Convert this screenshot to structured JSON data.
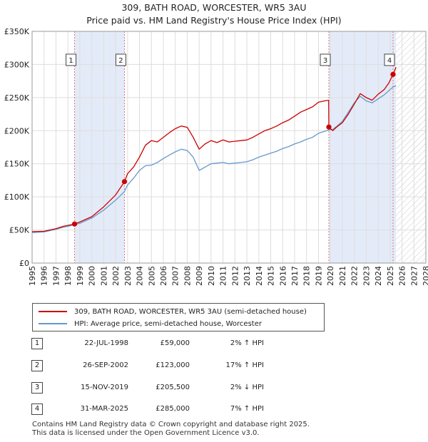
{
  "title_line1": "309, BATH ROAD, WORCESTER, WR5 3AU",
  "title_line2": "Price paid vs. HM Land Registry's House Price Index (HPI)",
  "chart_data": {
    "type": "line",
    "xlim": [
      1995,
      2028
    ],
    "ylim": [
      0,
      350000
    ],
    "yticks": [
      0,
      50000,
      100000,
      150000,
      200000,
      250000,
      300000,
      350000
    ],
    "ytick_labels": [
      "£0",
      "£50K",
      "£100K",
      "£150K",
      "£200K",
      "£250K",
      "£300K",
      "£350K"
    ],
    "xticks": [
      "1995",
      "1996",
      "1997",
      "1998",
      "1999",
      "2000",
      "2001",
      "2002",
      "2003",
      "2004",
      "2005",
      "2006",
      "2007",
      "2008",
      "2009",
      "2010",
      "2011",
      "2012",
      "2013",
      "2014",
      "2015",
      "2016",
      "2017",
      "2018",
      "2019",
      "2020",
      "2021",
      "2022",
      "2023",
      "2024",
      "2025",
      "2026",
      "2027",
      "2028"
    ],
    "future_start": 2025.5,
    "colors": {
      "property": "#cc0000",
      "hpi": "#6699cc",
      "shade": "#e4ebf8",
      "marker_line": "#e07070"
    },
    "series": [
      {
        "name": "property",
        "points": [
          [
            1995,
            47500
          ],
          [
            1996,
            48000
          ],
          [
            1997,
            52000
          ],
          [
            1997.6,
            55500
          ],
          [
            1998.0,
            57000
          ],
          [
            1998.56,
            59000
          ],
          [
            1999,
            62000
          ],
          [
            2000,
            70000
          ],
          [
            2001,
            85000
          ],
          [
            2002,
            103000
          ],
          [
            2002.74,
            123000
          ],
          [
            2003,
            135000
          ],
          [
            2003.5,
            145000
          ],
          [
            2004,
            160000
          ],
          [
            2004.5,
            178000
          ],
          [
            2005,
            185000
          ],
          [
            2005.5,
            183000
          ],
          [
            2006,
            190000
          ],
          [
            2006.5,
            197000
          ],
          [
            2007,
            203000
          ],
          [
            2007.5,
            207000
          ],
          [
            2008,
            205000
          ],
          [
            2008.5,
            190000
          ],
          [
            2009,
            172000
          ],
          [
            2009.5,
            180000
          ],
          [
            2010,
            185000
          ],
          [
            2010.5,
            182000
          ],
          [
            2011,
            186000
          ],
          [
            2011.5,
            183000
          ],
          [
            2012,
            184000
          ],
          [
            2012.5,
            185000
          ],
          [
            2013,
            186000
          ],
          [
            2013.5,
            190000
          ],
          [
            2014,
            195000
          ],
          [
            2014.5,
            200000
          ],
          [
            2015,
            203000
          ],
          [
            2015.5,
            207000
          ],
          [
            2016,
            212000
          ],
          [
            2016.5,
            216000
          ],
          [
            2017,
            222000
          ],
          [
            2017.5,
            228000
          ],
          [
            2018,
            232000
          ],
          [
            2018.5,
            236000
          ],
          [
            2019,
            243000
          ],
          [
            2019.5,
            245000
          ],
          [
            2019.85,
            246000
          ],
          [
            2019.87,
            205500
          ],
          [
            2020.2,
            200000
          ],
          [
            2020.5,
            205000
          ],
          [
            2021,
            212000
          ],
          [
            2021.5,
            225000
          ],
          [
            2022,
            240000
          ],
          [
            2022.5,
            256000
          ],
          [
            2023,
            250000
          ],
          [
            2023.5,
            246000
          ],
          [
            2024,
            255000
          ],
          [
            2024.5,
            262000
          ],
          [
            2024.9,
            272000
          ],
          [
            2025.25,
            285000
          ],
          [
            2025.5,
            296000
          ]
        ]
      },
      {
        "name": "hpi",
        "points": [
          [
            1995,
            46000
          ],
          [
            1996,
            47000
          ],
          [
            1997,
            51000
          ],
          [
            1997.6,
            54000
          ],
          [
            1998,
            55500
          ],
          [
            1998.56,
            57800
          ],
          [
            1999,
            60000
          ],
          [
            2000,
            68000
          ],
          [
            2001,
            80000
          ],
          [
            2002,
            95000
          ],
          [
            2002.74,
            108000
          ],
          [
            2003,
            118000
          ],
          [
            2003.5,
            128000
          ],
          [
            2004,
            140000
          ],
          [
            2004.5,
            147000
          ],
          [
            2005,
            148000
          ],
          [
            2005.5,
            152000
          ],
          [
            2006,
            158000
          ],
          [
            2006.5,
            163000
          ],
          [
            2007,
            168000
          ],
          [
            2007.5,
            172000
          ],
          [
            2008,
            170000
          ],
          [
            2008.5,
            160000
          ],
          [
            2009,
            140000
          ],
          [
            2009.5,
            145000
          ],
          [
            2010,
            150000
          ],
          [
            2010.5,
            151000
          ],
          [
            2011,
            152000
          ],
          [
            2011.5,
            150000
          ],
          [
            2012,
            151000
          ],
          [
            2012.5,
            152000
          ],
          [
            2013,
            153000
          ],
          [
            2013.5,
            156000
          ],
          [
            2014,
            160000
          ],
          [
            2014.5,
            163000
          ],
          [
            2015,
            166000
          ],
          [
            2015.5,
            169000
          ],
          [
            2016,
            173000
          ],
          [
            2016.5,
            176000
          ],
          [
            2017,
            180000
          ],
          [
            2017.5,
            183000
          ],
          [
            2018,
            187000
          ],
          [
            2018.5,
            190000
          ],
          [
            2019,
            196000
          ],
          [
            2019.5,
            199000
          ],
          [
            2019.87,
            201000
          ],
          [
            2020.2,
            202000
          ],
          [
            2020.5,
            206000
          ],
          [
            2021,
            214000
          ],
          [
            2021.5,
            228000
          ],
          [
            2022,
            242000
          ],
          [
            2022.5,
            252000
          ],
          [
            2023,
            245000
          ],
          [
            2023.5,
            242000
          ],
          [
            2024,
            248000
          ],
          [
            2024.5,
            254000
          ],
          [
            2025,
            262000
          ],
          [
            2025.25,
            266000
          ],
          [
            2025.5,
            268000
          ]
        ]
      }
    ],
    "sales": [
      {
        "id": "1",
        "x": 1998.56,
        "y": 59000
      },
      {
        "id": "2",
        "x": 2002.74,
        "y": 123000
      },
      {
        "id": "3",
        "x": 2019.87,
        "y": 205500
      },
      {
        "id": "4",
        "x": 2025.25,
        "y": 285000
      }
    ],
    "label_box_value": 307000
  },
  "legend": {
    "property": "309, BATH ROAD, WORCESTER, WR5 3AU (semi-detached house)",
    "hpi": "HPI: Average price, semi-detached house, Worcester"
  },
  "transactions": [
    {
      "num": "1",
      "date": "22-JUL-1998",
      "price": "£59,000",
      "hpi": "2% ↑ HPI"
    },
    {
      "num": "2",
      "date": "26-SEP-2002",
      "price": "£123,000",
      "hpi": "17% ↑ HPI"
    },
    {
      "num": "3",
      "date": "15-NOV-2019",
      "price": "£205,500",
      "hpi": "2% ↓ HPI"
    },
    {
      "num": "4",
      "date": "31-MAR-2025",
      "price": "£285,000",
      "hpi": "7% ↑ HPI"
    }
  ],
  "footer_line1": "Contains HM Land Registry data © Crown copyright and database right 2025.",
  "footer_line2": "This data is licensed under the Open Government Licence v3.0."
}
